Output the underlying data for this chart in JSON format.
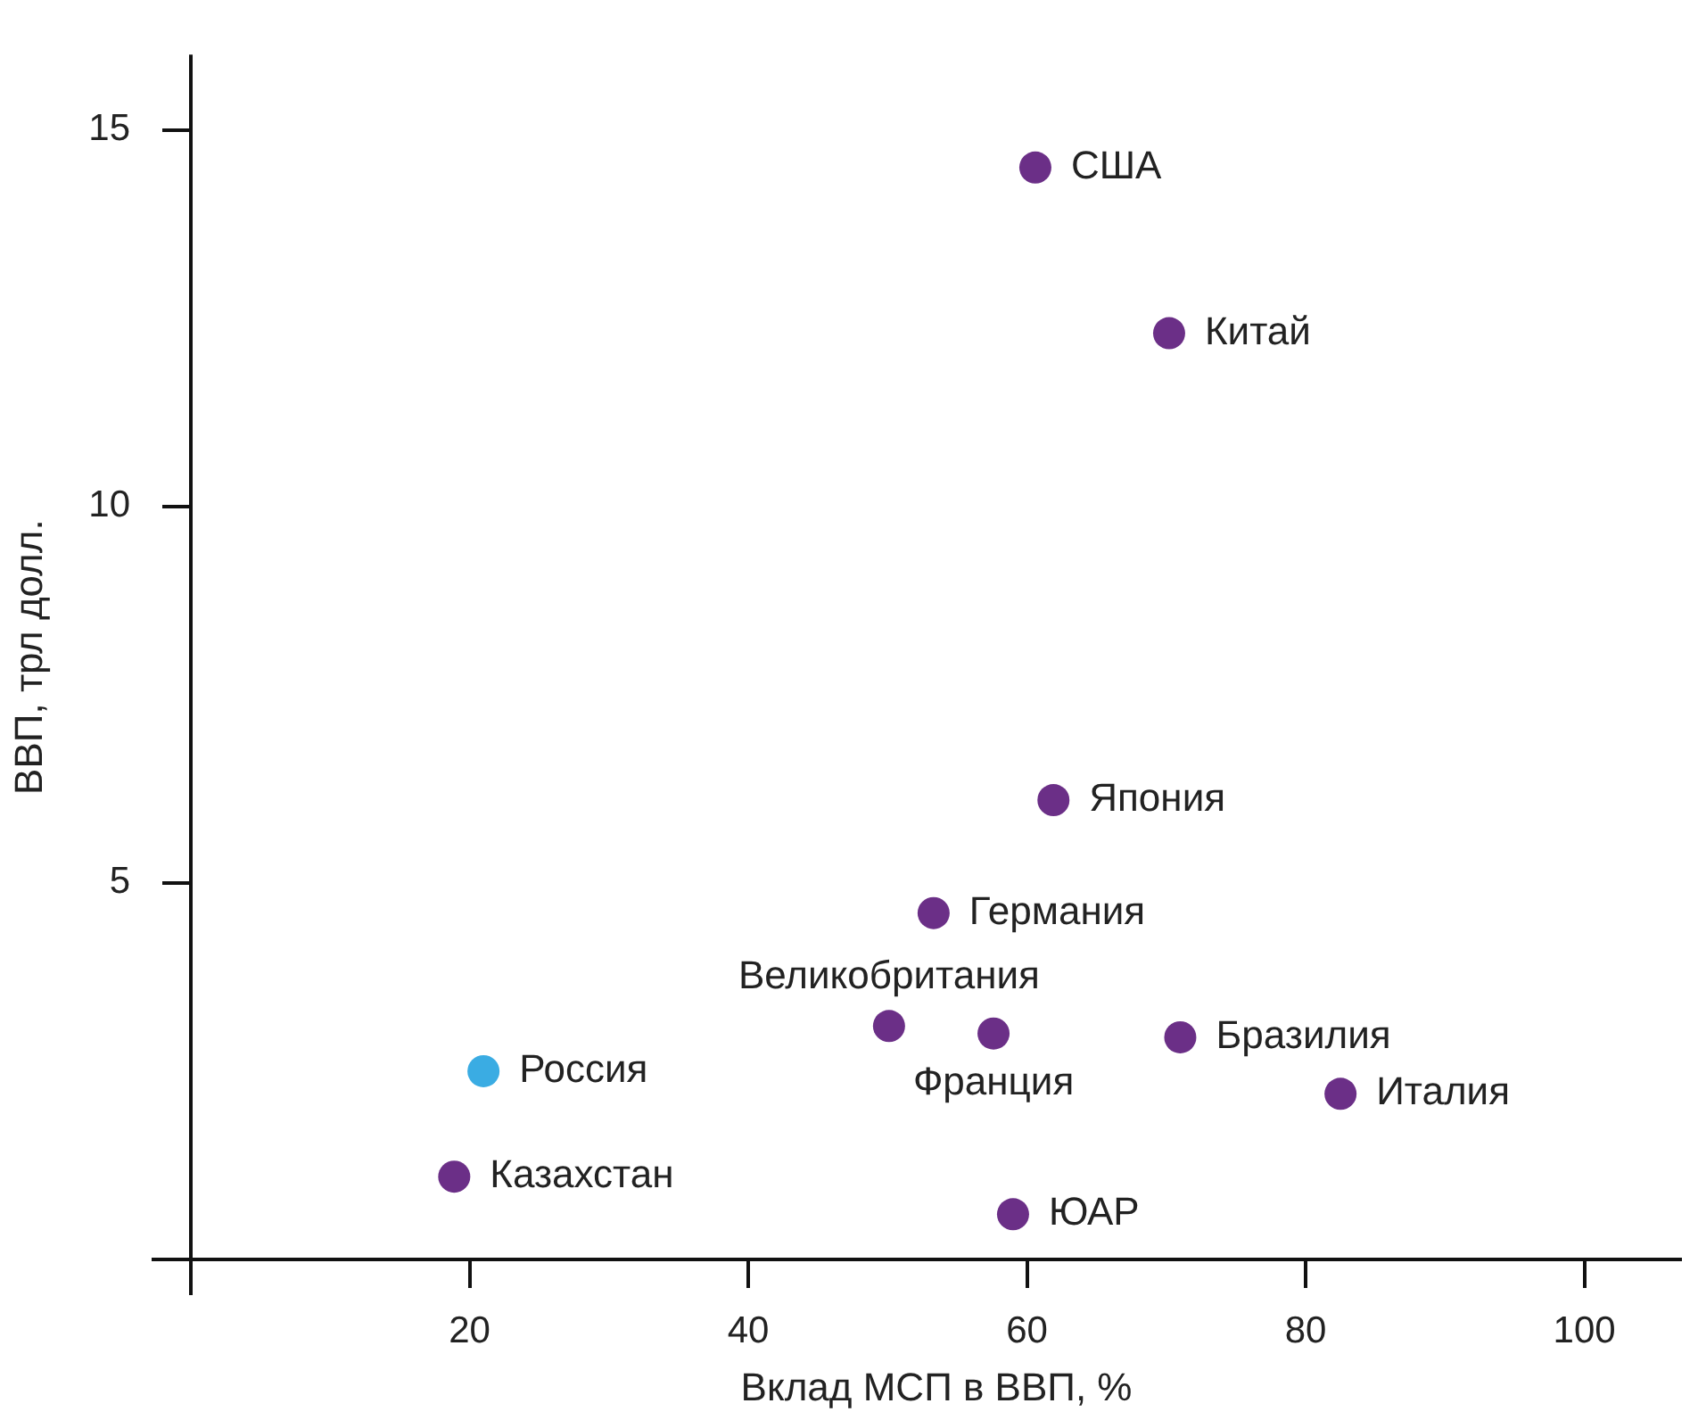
{
  "chart_data": {
    "type": "scatter",
    "xlabel": "Вклад МСП в ВВП, %",
    "ylabel": "ВВП, трл долл.",
    "x": [
      60.6,
      70.2,
      61.9,
      53.3,
      50.1,
      57.6,
      71.0,
      82.5,
      21.0,
      18.9,
      59.0
    ],
    "values": [
      14.5,
      12.3,
      6.1,
      4.6,
      3.1,
      3.0,
      2.95,
      2.2,
      2.5,
      1.1,
      0.6
    ],
    "colors": [
      "#6b2f87",
      "#6b2f87",
      "#6b2f87",
      "#6b2f87",
      "#6b2f87",
      "#6b2f87",
      "#6b2f87",
      "#6b2f87",
      "#3aace3",
      "#6b2f87",
      "#6b2f87"
    ],
    "annotations": [
      {
        "text": "США",
        "x": 60.6,
        "y": 14.5
      },
      {
        "text": "Китай",
        "x": 70.2,
        "y": 12.3
      },
      {
        "text": "Япония",
        "x": 61.9,
        "y": 6.1
      },
      {
        "text": "Германия",
        "x": 53.3,
        "y": 4.6
      },
      {
        "text": "Великобритания",
        "x": 50.1,
        "y": 3.1
      },
      {
        "text": "Франция",
        "x": 57.6,
        "y": 3.0
      },
      {
        "text": "Бразилия",
        "x": 71.0,
        "y": 2.95
      },
      {
        "text": "Италия",
        "x": 82.5,
        "y": 2.2
      },
      {
        "text": "Россия",
        "x": 21.0,
        "y": 2.5
      },
      {
        "text": "Казахстан",
        "x": 18.9,
        "y": 1.1
      },
      {
        "text": "ЮАР",
        "x": 59.0,
        "y": 0.6
      }
    ],
    "xlim": [
      0,
      107
    ],
    "xticks": [
      20,
      40,
      60,
      80,
      100
    ],
    "ylim": [
      0,
      16
    ],
    "yticks": [
      5,
      10,
      15
    ],
    "grid": false,
    "legend": false,
    "marker": "circle"
  }
}
